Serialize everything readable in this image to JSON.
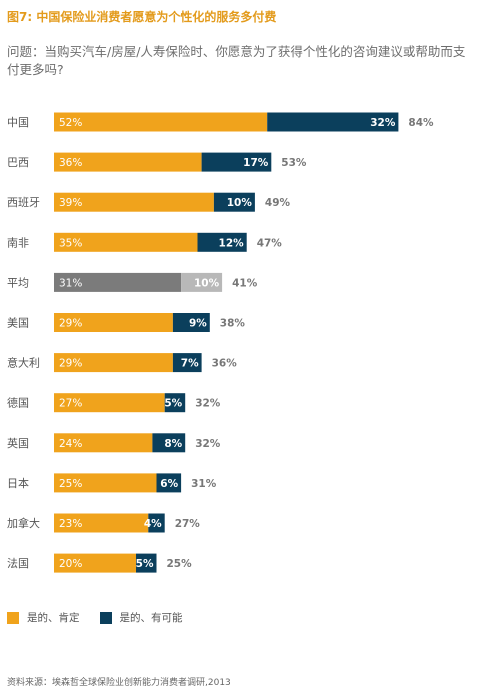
{
  "title": "图7: 中国保险业消费者愿意为个性化的服务多付费",
  "question": "问题：当购买汽车/房屋/人寿保险时、你愿意为了获得个性化的咨询建议或帮助而支付更多吗?",
  "legend": {
    "series_1": "是的、肯定",
    "series_2": "是的、有可能"
  },
  "source": "资料来源：埃森哲全球保险业创新能力消费者调研,2013",
  "colors": {
    "series_1": "#f0a31c",
    "series_2": "#0b3f5c",
    "average_1": "#7b7b7b",
    "average_2": "#b8b8b8",
    "title": "#e39b1c"
  },
  "chart_data": {
    "type": "bar",
    "orientation": "horizontal",
    "stacked": true,
    "categories": [
      "中国",
      "巴西",
      "西班牙",
      "南非",
      "平均",
      "美国",
      "意大利",
      "德国",
      "英国",
      "日本",
      "加拿大",
      "法国"
    ],
    "series": [
      {
        "name": "是的、肯定",
        "values": [
          52,
          36,
          39,
          35,
          31,
          29,
          29,
          27,
          24,
          25,
          23,
          20
        ]
      },
      {
        "name": "是的、有可能",
        "values": [
          32,
          17,
          10,
          12,
          10,
          9,
          7,
          5,
          8,
          6,
          4,
          5
        ]
      }
    ],
    "totals": [
      84,
      53,
      49,
      47,
      41,
      38,
      36,
      32,
      32,
      31,
      27,
      25
    ],
    "highlight_category": "平均",
    "value_suffix": "%",
    "xlim": [
      0,
      100
    ],
    "grid": false
  }
}
